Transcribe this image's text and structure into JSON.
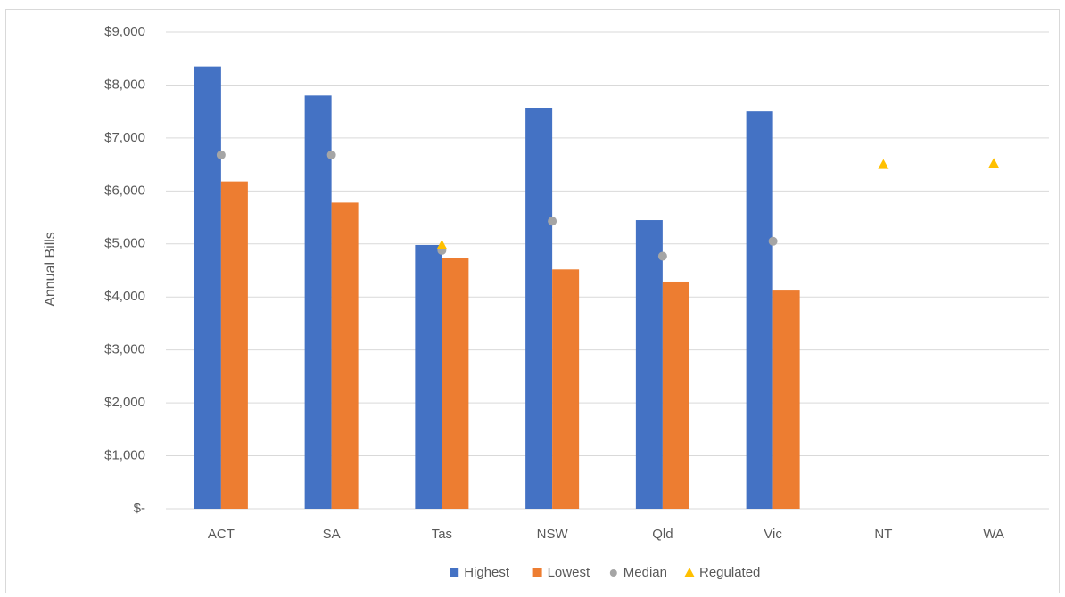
{
  "chart_data": {
    "type": "bar",
    "title": "",
    "xlabel": "",
    "ylabel": "Annual Bills",
    "ylim": [
      0,
      9000
    ],
    "ytick_values": [
      0,
      1000,
      2000,
      3000,
      4000,
      5000,
      6000,
      7000,
      8000,
      9000
    ],
    "ytick_labels": [
      "$-",
      "$1,000",
      "$2,000",
      "$3,000",
      "$4,000",
      "$5,000",
      "$6,000",
      "$7,000",
      "$8,000",
      "$9,000"
    ],
    "categories": [
      "ACT",
      "SA",
      "Tas",
      "NSW",
      "Qld",
      "Vic",
      "NT",
      "WA"
    ],
    "grid": true,
    "legend_position": "bottom",
    "series": [
      {
        "name": "Highest",
        "kind": "bar",
        "color": "#4472c4",
        "marker": "square",
        "values": [
          8350,
          7800,
          4980,
          7570,
          5450,
          7500,
          null,
          null
        ]
      },
      {
        "name": "Lowest",
        "kind": "bar",
        "color": "#ed7d31",
        "marker": "square",
        "values": [
          6180,
          5780,
          4730,
          4520,
          4290,
          4120,
          null,
          null
        ]
      },
      {
        "name": "Median",
        "kind": "point",
        "color": "#a5a5a5",
        "marker": "circle",
        "values": [
          6680,
          6680,
          4880,
          5430,
          4770,
          5050,
          null,
          null
        ]
      },
      {
        "name": "Regulated",
        "kind": "point",
        "color": "#ffc000",
        "marker": "triangle",
        "values": [
          null,
          null,
          4980,
          null,
          null,
          null,
          6500,
          6520
        ]
      }
    ]
  }
}
